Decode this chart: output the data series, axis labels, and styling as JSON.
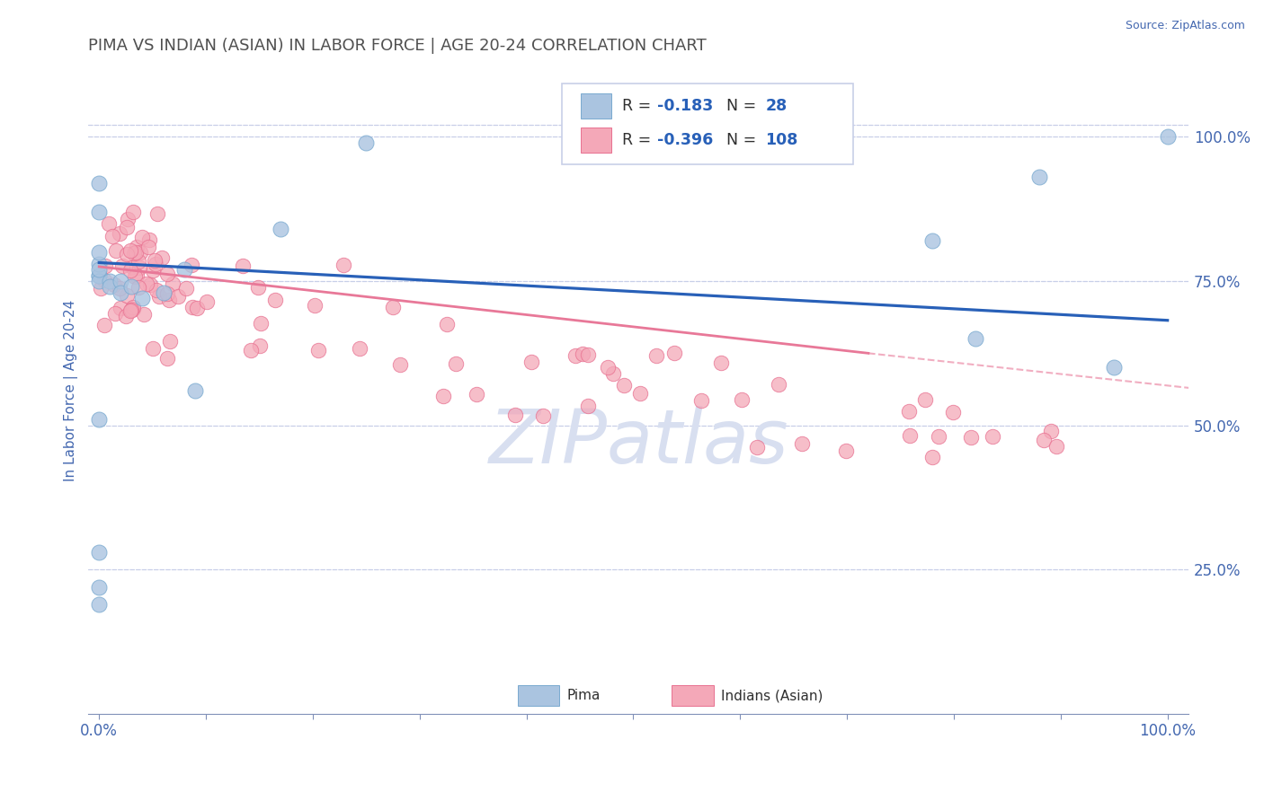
{
  "title": "PIMA VS INDIAN (ASIAN) IN LABOR FORCE | AGE 20-24 CORRELATION CHART",
  "source": "Source: ZipAtlas.com",
  "ylabel": "In Labor Force | Age 20-24",
  "xlim": [
    -0.01,
    1.02
  ],
  "ylim": [
    0.0,
    1.12
  ],
  "y_ticks_right": [
    0.25,
    0.5,
    0.75,
    1.0
  ],
  "y_tick_labels_right": [
    "25.0%",
    "50.0%",
    "75.0%",
    "100.0%"
  ],
  "watermark": "ZIPatlas",
  "legend_R_pima": "-0.183",
  "legend_N_pima": "28",
  "legend_R_indian": "-0.396",
  "legend_N_indian": "108",
  "pima_color": "#aac4e0",
  "pima_edge_color": "#7aaad0",
  "indian_color": "#f4a8b8",
  "indian_edge_color": "#e87090",
  "pima_line_color": "#2860b8",
  "indian_line_color": "#e87898",
  "background_color": "#ffffff",
  "title_color": "#505050",
  "axis_label_color": "#4468b0",
  "grid_color": "#c8cfe8",
  "tick_color": "#8090b8",
  "watermark_color": "#d8dff0",
  "source_color": "#4468b0",
  "legend_text_color": "#303030",
  "legend_num_color": "#2860b8"
}
